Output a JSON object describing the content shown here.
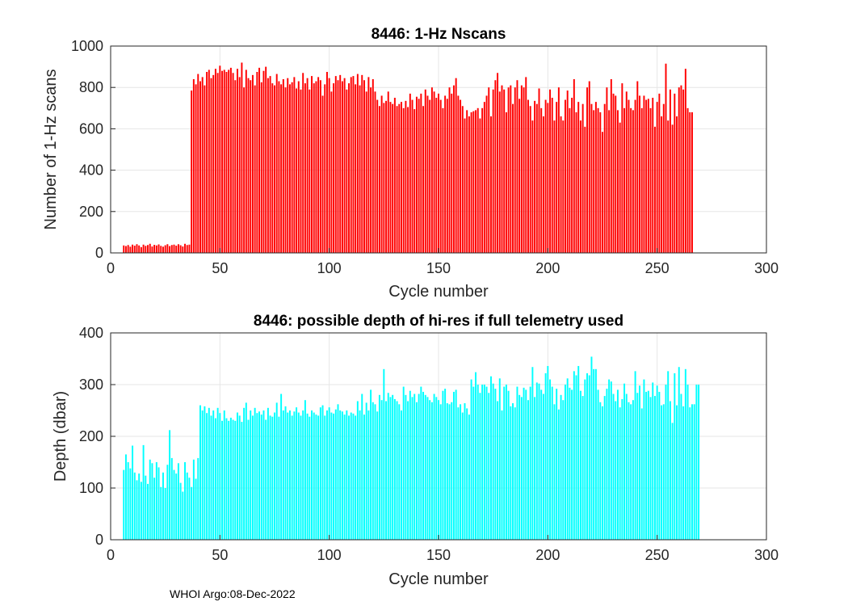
{
  "chart_data": [
    {
      "type": "bar",
      "title": "8446: 1-Hz Nscans",
      "xlabel": "Cycle number",
      "ylabel": "Number of 1-Hz scans",
      "xlim": [
        0,
        300
      ],
      "ylim": [
        0,
        1000
      ],
      "xticks": [
        0,
        50,
        100,
        150,
        200,
        250,
        300
      ],
      "yticks": [
        0,
        200,
        400,
        600,
        800,
        1000
      ],
      "grid": true,
      "color": "#ff0000",
      "x_start": 6,
      "values": [
        36,
        33,
        38,
        30,
        40,
        35,
        42,
        36,
        28,
        40,
        34,
        38,
        44,
        31,
        39,
        36,
        41,
        34,
        30,
        37,
        42,
        33,
        38,
        40,
        35,
        42,
        37,
        31,
        44,
        38,
        40,
        785,
        840,
        815,
        865,
        830,
        850,
        810,
        875,
        885,
        845,
        860,
        890,
        870,
        905,
        880,
        885,
        875,
        885,
        895,
        870,
        835,
        890,
        850,
        920,
        800,
        885,
        845,
        835,
        860,
        810,
        875,
        895,
        825,
        880,
        900,
        845,
        855,
        820,
        810,
        865,
        830,
        815,
        840,
        800,
        845,
        815,
        825,
        850,
        795,
        830,
        790,
        870,
        820,
        845,
        790,
        855,
        820,
        830,
        850,
        835,
        760,
        815,
        875,
        845,
        780,
        820,
        855,
        835,
        860,
        830,
        845,
        790,
        820,
        850,
        855,
        815,
        865,
        810,
        860,
        835,
        780,
        850,
        800,
        840,
        780,
        740,
        710,
        760,
        725,
        735,
        780,
        730,
        720,
        750,
        710,
        720,
        730,
        700,
        735,
        705,
        770,
        740,
        695,
        755,
        745,
        770,
        710,
        790,
        760,
        740,
        800,
        780,
        750,
        770,
        740,
        700,
        760,
        745,
        800,
        770,
        810,
        845,
        760,
        740,
        710,
        650,
        690,
        660,
        680,
        685,
        690,
        700,
        650,
        700,
        730,
        760,
        800,
        660,
        790,
        835,
        870,
        780,
        810,
        790,
        680,
        800,
        810,
        720,
        800,
        835,
        745,
        810,
        800,
        850,
        740,
        710,
        640,
        735,
        720,
        795,
        700,
        660,
        740,
        725,
        790,
        750,
        640,
        730,
        800,
        660,
        640,
        740,
        785,
        700,
        750,
        840,
        680,
        730,
        640,
        720,
        610,
        800,
        830,
        720,
        690,
        730,
        700,
        680,
        585,
        720,
        800,
        690,
        840,
        770,
        760,
        690,
        630,
        820,
        700,
        780,
        740,
        700,
        690,
        740,
        830,
        760,
        700,
        760,
        740,
        745,
        700,
        750,
        610,
        730,
        770,
        660,
        720,
        915,
        640,
        790,
        620,
        770,
        660,
        800,
        810,
        790,
        890,
        700,
        680,
        680
      ]
    },
    {
      "type": "bar",
      "title": "8446: possible depth of hi-res if full telemetry used",
      "xlabel": "Cycle number",
      "ylabel": "Depth (dbar)",
      "xlim": [
        0,
        300
      ],
      "ylim": [
        0,
        400
      ],
      "xticks": [
        0,
        50,
        100,
        150,
        200,
        250,
        300
      ],
      "yticks": [
        0,
        100,
        200,
        300,
        400
      ],
      "grid": true,
      "color": "#00ffff",
      "x_start": 6,
      "values": [
        135,
        165,
        150,
        138,
        182,
        130,
        115,
        128,
        112,
        183,
        124,
        108,
        155,
        148,
        120,
        150,
        140,
        102,
        130,
        100,
        145,
        212,
        158,
        135,
        128,
        148,
        110,
        93,
        150,
        130,
        120,
        102,
        155,
        118,
        158,
        260,
        250,
        258,
        245,
        255,
        240,
        250,
        235,
        255,
        245,
        230,
        250,
        235,
        230,
        236,
        232,
        230,
        246,
        240,
        228,
        255,
        265,
        232,
        250,
        240,
        255,
        245,
        248,
        242,
        250,
        232,
        255,
        240,
        238,
        246,
        265,
        238,
        282,
        250,
        258,
        246,
        250,
        240,
        248,
        256,
        246,
        240,
        250,
        270,
        244,
        238,
        250,
        246,
        242,
        240,
        256,
        260,
        240,
        250,
        256,
        246,
        244,
        252,
        262,
        250,
        248,
        242,
        250,
        240,
        246,
        244,
        240,
        268,
        250,
        282,
        242,
        265,
        250,
        290,
        266,
        262,
        248,
        280,
        270,
        330,
        268,
        284,
        276,
        280,
        272,
        268,
        262,
        250,
        296,
        280,
        268,
        288,
        276,
        282,
        266,
        282,
        296,
        286,
        280,
        276,
        270,
        266,
        282,
        276,
        270,
        262,
        288,
        292,
        264,
        262,
        266,
        286,
        290,
        256,
        262,
        246,
        264,
        254,
        242,
        310,
        296,
        324,
        300,
        284,
        300,
        300,
        296,
        284,
        316,
        302,
        292,
        268,
        312,
        250,
        296,
        300,
        288,
        258,
        264,
        256,
        296,
        280,
        276,
        294,
        290,
        270,
        296,
        334,
        276,
        304,
        302,
        290,
        282,
        322,
        336,
        310,
        296,
        262,
        292,
        252,
        280,
        270,
        300,
        312,
        294,
        290,
        326,
        318,
        336,
        288,
        278,
        310,
        322,
        318,
        354,
        330,
        330,
        290,
        266,
        258,
        278,
        292,
        310,
        306,
        282,
        268,
        290,
        256,
        272,
        302,
        282,
        266,
        262,
        270,
        326,
        284,
        298,
        254,
        310,
        286,
        288,
        276,
        304,
        278,
        298,
        286,
        260,
        262,
        300,
        326,
        268,
        226,
        322,
        260,
        334,
        282,
        258,
        330,
        300,
        256,
        262,
        262,
        300,
        300
      ]
    }
  ],
  "footer": {
    "text": "WHOI Argo:08-Dec-2022"
  }
}
